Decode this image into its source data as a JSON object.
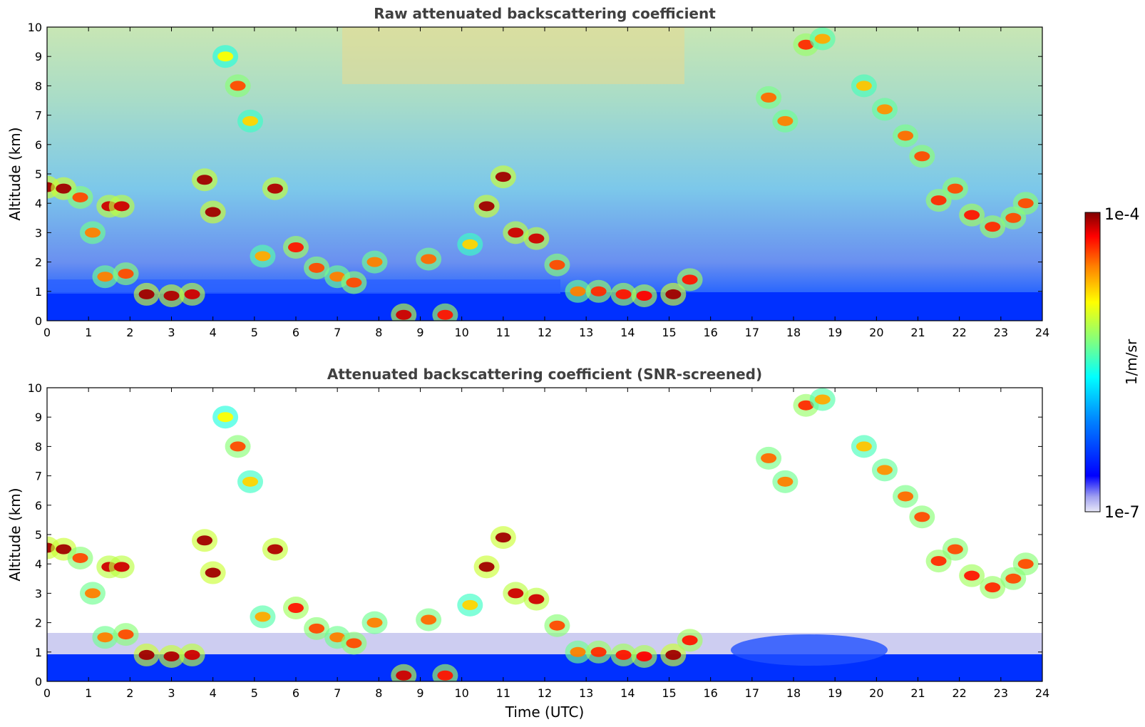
{
  "chart_data": [
    {
      "type": "heatmap",
      "title": "Raw attenuated backscattering coefficient",
      "xlabel": "",
      "ylabel": "Altitude (km)",
      "xlim": [
        0,
        24
      ],
      "ylim": [
        0,
        10
      ],
      "xticks": [
        "0",
        "1",
        "2",
        "3",
        "4",
        "5",
        "6",
        "7",
        "8",
        "9",
        "10",
        "11",
        "12",
        "13",
        "14",
        "15",
        "16",
        "17",
        "18",
        "19",
        "20",
        "21",
        "22",
        "23",
        "24"
      ],
      "yticks": [
        "0",
        "1",
        "2",
        "3",
        "4",
        "5",
        "6",
        "7",
        "8",
        "9",
        "10"
      ],
      "screened": false,
      "layers": [
        {
          "t": 0.0,
          "z": 4.55,
          "level": 0.98
        },
        {
          "t": 0.4,
          "z": 4.5,
          "level": 0.98
        },
        {
          "t": 0.8,
          "z": 4.2,
          "level": 0.85
        },
        {
          "t": 1.1,
          "z": 3.0,
          "level": 0.8
        },
        {
          "t": 1.4,
          "z": 1.5,
          "level": 0.8
        },
        {
          "t": 1.5,
          "z": 3.9,
          "level": 0.95
        },
        {
          "t": 1.8,
          "z": 3.9,
          "level": 0.95
        },
        {
          "t": 1.9,
          "z": 1.6,
          "level": 0.85
        },
        {
          "t": 2.4,
          "z": 0.9,
          "level": 0.98
        },
        {
          "t": 3.0,
          "z": 0.85,
          "level": 0.97
        },
        {
          "t": 3.5,
          "z": 0.9,
          "level": 0.95
        },
        {
          "t": 3.8,
          "z": 4.8,
          "level": 0.98
        },
        {
          "t": 4.0,
          "z": 3.7,
          "level": 0.98
        },
        {
          "t": 4.3,
          "z": 9.0,
          "level": 0.65
        },
        {
          "t": 4.6,
          "z": 8.0,
          "level": 0.85
        },
        {
          "t": 4.9,
          "z": 6.8,
          "level": 0.7
        },
        {
          "t": 5.2,
          "z": 2.2,
          "level": 0.75
        },
        {
          "t": 5.5,
          "z": 4.5,
          "level": 0.97
        },
        {
          "t": 6.0,
          "z": 2.5,
          "level": 0.9
        },
        {
          "t": 6.5,
          "z": 1.8,
          "level": 0.85
        },
        {
          "t": 7.0,
          "z": 1.5,
          "level": 0.8
        },
        {
          "t": 7.4,
          "z": 1.3,
          "level": 0.85
        },
        {
          "t": 7.9,
          "z": 2.0,
          "level": 0.8
        },
        {
          "t": 8.6,
          "z": 0.2,
          "level": 0.95
        },
        {
          "t": 9.2,
          "z": 2.1,
          "level": 0.82
        },
        {
          "t": 9.6,
          "z": 0.2,
          "level": 0.9
        },
        {
          "t": 10.2,
          "z": 2.6,
          "level": 0.7
        },
        {
          "t": 10.6,
          "z": 3.9,
          "level": 0.98
        },
        {
          "t": 11.0,
          "z": 4.9,
          "level": 0.98
        },
        {
          "t": 11.3,
          "z": 3.0,
          "level": 0.95
        },
        {
          "t": 11.8,
          "z": 2.8,
          "level": 0.95
        },
        {
          "t": 12.3,
          "z": 1.9,
          "level": 0.85
        },
        {
          "t": 12.8,
          "z": 1.0,
          "level": 0.8
        },
        {
          "t": 13.3,
          "z": 1.0,
          "level": 0.88
        },
        {
          "t": 13.9,
          "z": 0.9,
          "level": 0.9
        },
        {
          "t": 14.4,
          "z": 0.85,
          "level": 0.92
        },
        {
          "t": 15.1,
          "z": 0.9,
          "level": 0.98
        },
        {
          "t": 15.5,
          "z": 1.4,
          "level": 0.9
        },
        {
          "t": 17.4,
          "z": 7.6,
          "level": 0.82
        },
        {
          "t": 17.8,
          "z": 6.8,
          "level": 0.8
        },
        {
          "t": 18.3,
          "z": 9.4,
          "level": 0.88
        },
        {
          "t": 18.7,
          "z": 9.6,
          "level": 0.75
        },
        {
          "t": 19.7,
          "z": 8.0,
          "level": 0.72
        },
        {
          "t": 20.2,
          "z": 7.2,
          "level": 0.78
        },
        {
          "t": 20.7,
          "z": 6.3,
          "level": 0.82
        },
        {
          "t": 21.1,
          "z": 5.6,
          "level": 0.85
        },
        {
          "t": 21.5,
          "z": 4.1,
          "level": 0.88
        },
        {
          "t": 21.9,
          "z": 4.5,
          "level": 0.85
        },
        {
          "t": 22.3,
          "z": 3.6,
          "level": 0.9
        },
        {
          "t": 22.8,
          "z": 3.2,
          "level": 0.88
        },
        {
          "t": 23.3,
          "z": 3.5,
          "level": 0.85
        },
        {
          "t": 23.6,
          "z": 4.0,
          "level": 0.85
        }
      ]
    },
    {
      "type": "heatmap",
      "title": "Attenuated backscattering coefficient (SNR-screened)",
      "xlabel": "Time (UTC)",
      "ylabel": "Altitude (km)",
      "xlim": [
        0,
        24
      ],
      "ylim": [
        0,
        10
      ],
      "xticks": [
        "0",
        "1",
        "2",
        "3",
        "4",
        "5",
        "6",
        "7",
        "8",
        "9",
        "10",
        "11",
        "12",
        "13",
        "14",
        "15",
        "16",
        "17",
        "18",
        "19",
        "20",
        "21",
        "22",
        "23",
        "24"
      ],
      "yticks": [
        "0",
        "1",
        "2",
        "3",
        "4",
        "5",
        "6",
        "7",
        "8",
        "9",
        "10"
      ],
      "screened": true
    }
  ],
  "colorbar": {
    "label": "1/m/sr",
    "max_label": "1e-4",
    "min_label": "1e-7",
    "colormap": "jet",
    "scale": "log",
    "colors": [
      "#ffffff",
      "#dcdcf5",
      "#a0a0f0",
      "#0000ff",
      "#0080ff",
      "#00ffff",
      "#80ff80",
      "#ffff00",
      "#ff8000",
      "#ff0000",
      "#800000"
    ]
  }
}
